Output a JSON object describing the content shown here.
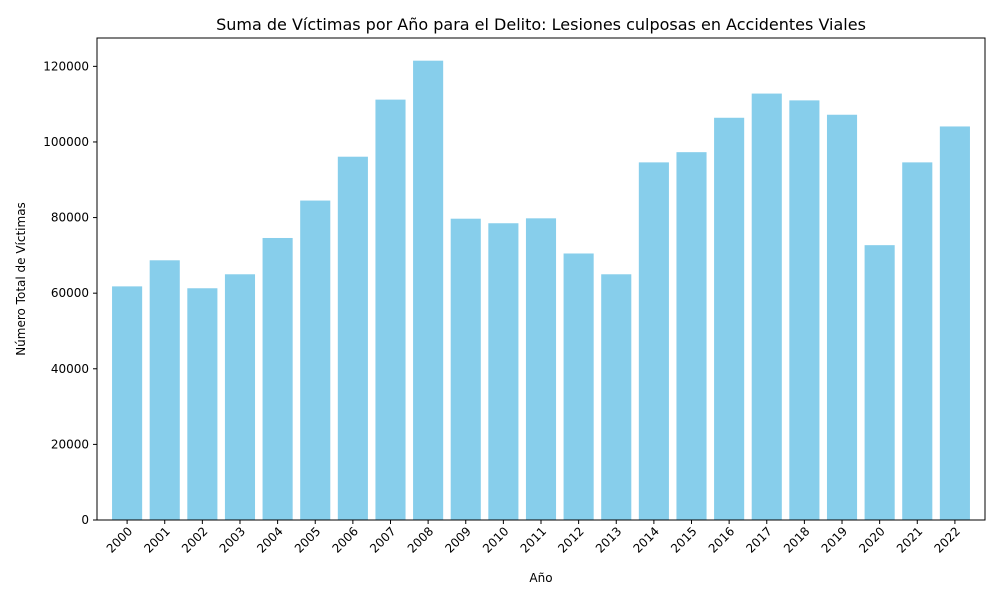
{
  "chart_data": {
    "type": "bar",
    "title": "Suma de Víctimas por Año para el Delito: Lesiones culposas en Accidentes Viales",
    "xlabel": "Año",
    "ylabel": "Número Total de Víctimas",
    "categories": [
      "2000",
      "2001",
      "2002",
      "2003",
      "2004",
      "2005",
      "2006",
      "2007",
      "2008",
      "2009",
      "2010",
      "2011",
      "2012",
      "2013",
      "2014",
      "2015",
      "2016",
      "2017",
      "2018",
      "2019",
      "2020",
      "2021",
      "2022"
    ],
    "values": [
      61800,
      68700,
      61300,
      65000,
      74600,
      84500,
      96100,
      111200,
      121500,
      79700,
      78500,
      79800,
      70500,
      65000,
      94600,
      97300,
      106400,
      112800,
      111000,
      107200,
      72700,
      94600,
      104100
    ],
    "ylim": [
      0,
      127500
    ],
    "yticks": [
      0,
      20000,
      40000,
      60000,
      80000,
      100000,
      120000
    ],
    "bar_color": "#87ceeb",
    "grid": false,
    "legend": "none"
  }
}
